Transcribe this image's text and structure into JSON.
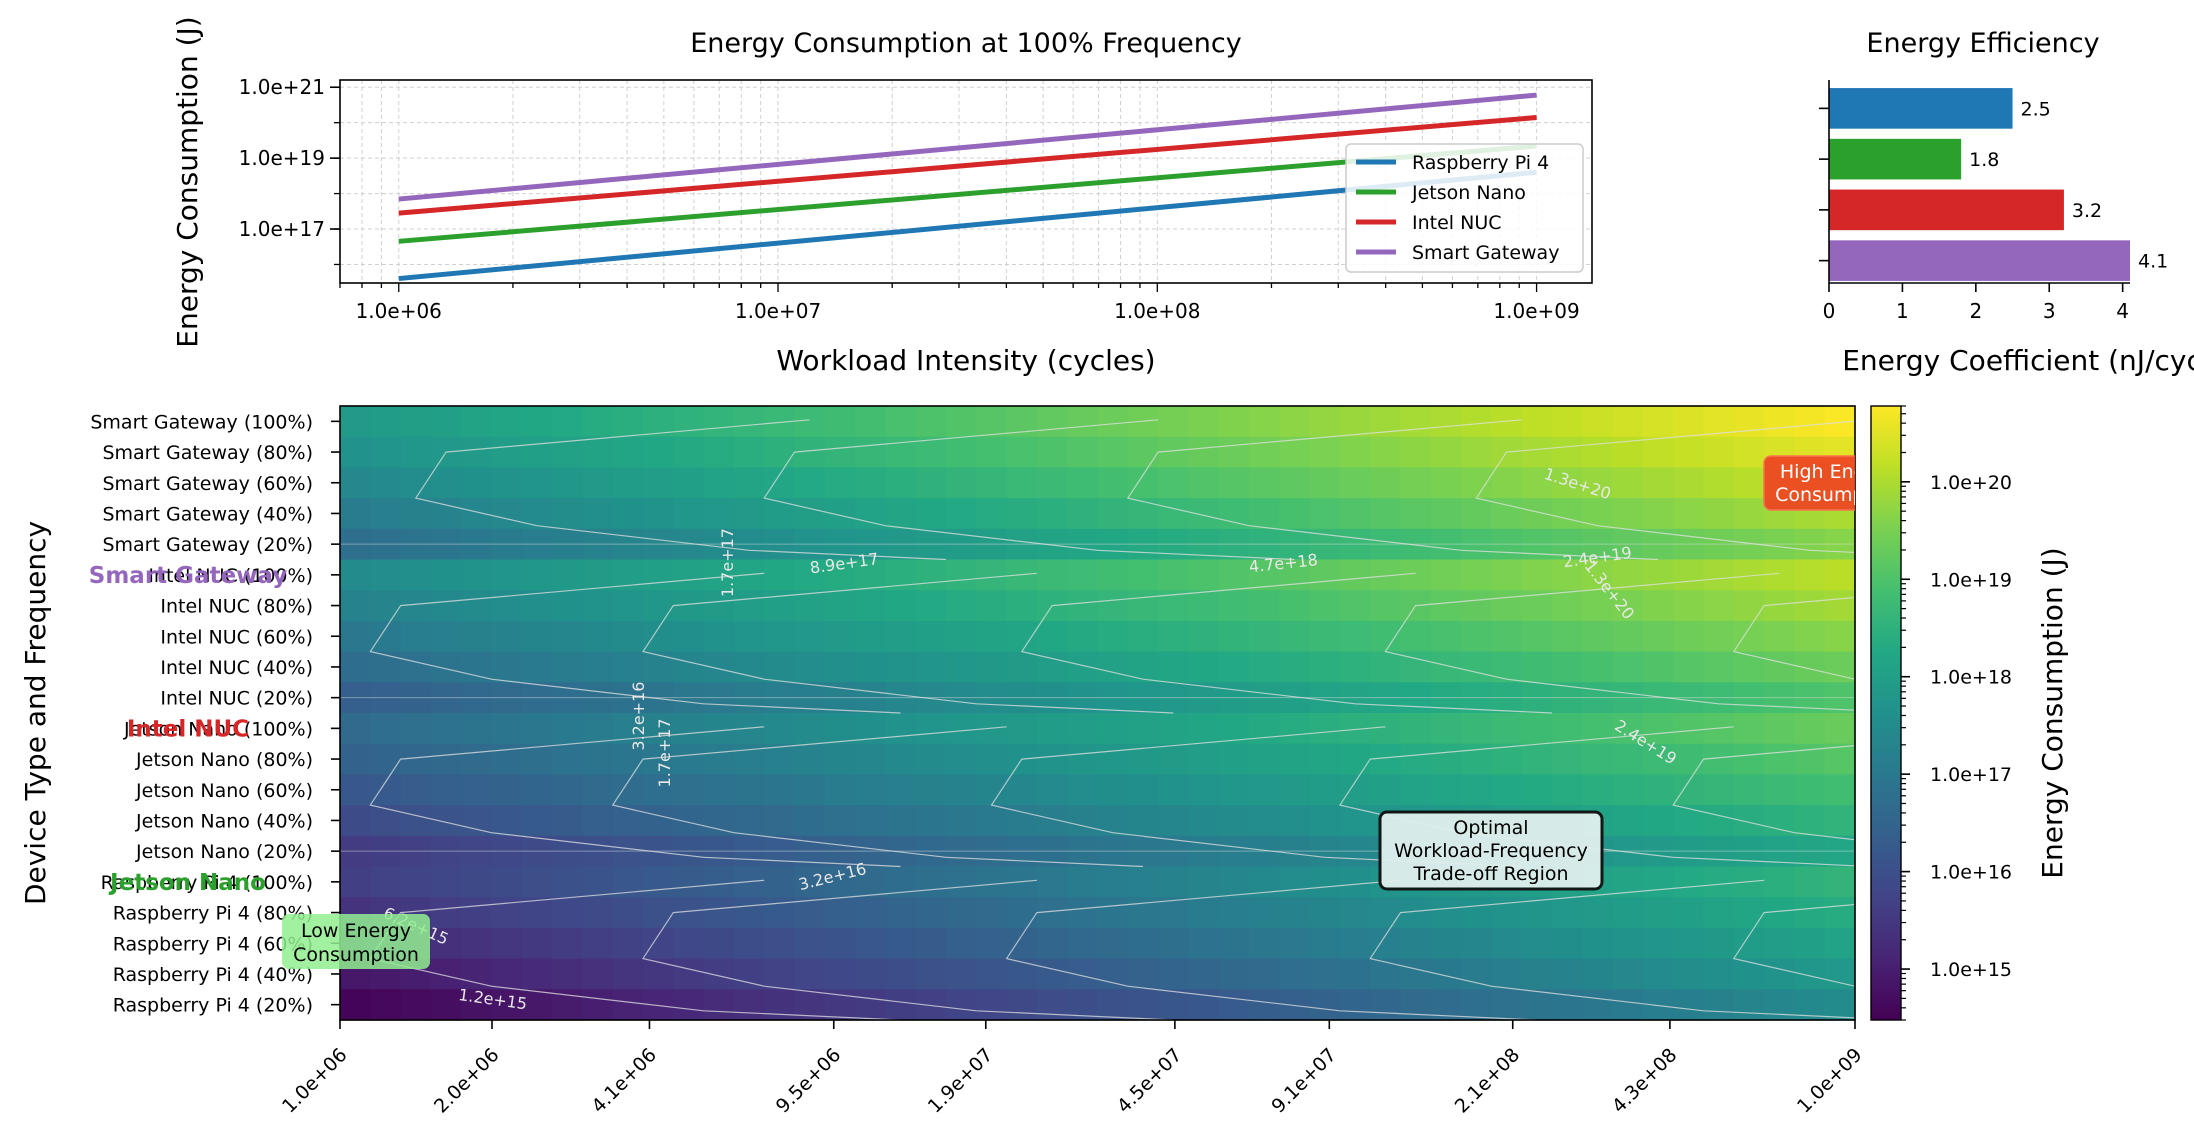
{
  "colors": {
    "raspberry": "#1f77b4",
    "jetson": "#2ca02c",
    "intel": "#d62728",
    "gateway": "#9467bd",
    "grid": "#d0d0d0",
    "axis": "#000000",
    "contour": "#e0e0e0",
    "high_box": "#ee4422",
    "low_box": "#90ee90",
    "optimal_box": "#e0f0ee"
  },
  "chart_data": [
    {
      "type": "line",
      "title": "Energy Consumption at 100% Frequency",
      "xlabel": "Workload Intensity (cycles)",
      "ylabel": "Energy Consumption (J)",
      "xscale": "log",
      "yscale": "log",
      "xlim": [
        700000,
        1400000000
      ],
      "ylim": [
        3000000000000000.0,
        1.6e+21
      ],
      "xticks": [
        {
          "v": 1000000.0,
          "label": "1.0e+06"
        },
        {
          "v": 10000000.0,
          "label": "1.0e+07"
        },
        {
          "v": 100000000.0,
          "label": "1.0e+08"
        },
        {
          "v": 1000000000.0,
          "label": "1.0e+09"
        }
      ],
      "yticks": [
        {
          "v": 1e+17,
          "label": "1.0e+17"
        },
        {
          "v": 1e+19,
          "label": "1.0e+19"
        },
        {
          "v": 1e+21,
          "label": "1.0e+21"
        }
      ],
      "grid": true,
      "legend_position": "right",
      "series": [
        {
          "name": "Raspberry Pi 4",
          "color_key": "raspberry",
          "x": [
            1000000.0,
            1000000000.0
          ],
          "y": [
            4000000000000000.0,
            4e+18
          ]
        },
        {
          "name": "Jetson Nano",
          "color_key": "jetson",
          "x": [
            1000000.0,
            1000000000.0
          ],
          "y": [
            4.5e+16,
            2.2e+19
          ]
        },
        {
          "name": "Intel NUC",
          "color_key": "intel",
          "x": [
            1000000.0,
            1000000000.0
          ],
          "y": [
            2.8e+17,
            1.4e+20
          ]
        },
        {
          "name": "Smart Gateway",
          "color_key": "gateway",
          "x": [
            1000000.0,
            1000000000.0
          ],
          "y": [
            7e+17,
            6e+20
          ]
        }
      ]
    },
    {
      "type": "bar",
      "orientation": "horizontal",
      "title": "Energy Efficiency",
      "xlabel": "Energy Coefficient (nJ/cycle)",
      "xlim": [
        0,
        4.1
      ],
      "xticks": [
        0,
        1,
        2,
        3,
        4
      ],
      "categories": [
        "Raspberry Pi 4",
        "Jetson Nano",
        "Intel NUC",
        "Smart Gateway"
      ],
      "values": [
        2.5,
        1.8,
        3.2,
        4.1
      ],
      "value_labels": [
        "2.5",
        "1.8",
        "3.2",
        "4.1"
      ],
      "color_keys": [
        "raspberry",
        "jetson",
        "intel",
        "gateway"
      ]
    },
    {
      "type": "heatmap",
      "ylabel": "Device Type and Frequency",
      "colorbar_label": "Energy Consumption (J)",
      "color_scale": "log",
      "colormap": "viridis",
      "zlim": [
        300000000000000.0,
        6e+20
      ],
      "colorbar_ticks": [
        {
          "v": 1000000000000000.0,
          "label": "1.0e+15"
        },
        {
          "v": 1e+16,
          "label": "1.0e+16"
        },
        {
          "v": 1e+17,
          "label": "1.0e+17"
        },
        {
          "v": 1e+18,
          "label": "1.0e+18"
        },
        {
          "v": 1e+19,
          "label": "1.0e+19"
        },
        {
          "v": 1e+20,
          "label": "1.0e+20"
        }
      ],
      "x_min": 1000000.0,
      "x_max": 1000000000.0,
      "x_ticks": [
        "1.0e+06",
        "2.0e+06",
        "4.1e+06",
        "9.5e+06",
        "1.9e+07",
        "4.5e+07",
        "9.1e+07",
        "2.1e+08",
        "4.3e+08",
        "1.0e+09"
      ],
      "x_tick_values": [
        1000000.0,
        2000000.0,
        4100000.0,
        9500000.0,
        19000000.0,
        45000000.0,
        91000000.0,
        210000000.0,
        430000000.0,
        1000000000.0
      ],
      "n_cols": 50,
      "rows": [
        "Smart Gateway (100%)",
        "Smart Gateway (80%)",
        "Smart Gateway (60%)",
        "Smart Gateway (40%)",
        "Smart Gateway (20%)",
        "Intel NUC (100%)",
        "Intel NUC (80%)",
        "Intel NUC (60%)",
        "Intel NUC (40%)",
        "Intel NUC (20%)",
        "Jetson Nano (100%)",
        "Jetson Nano (80%)",
        "Jetson Nano (60%)",
        "Jetson Nano (40%)",
        "Jetson Nano (20%)",
        "Raspberry Pi 4 (100%)",
        "Raspberry Pi 4 (80%)",
        "Raspberry Pi 4 (60%)",
        "Raspberry Pi 4 (40%)",
        "Raspberry Pi 4 (20%)"
      ],
      "row_energy_at_min": [
        7e+17,
        4.2e+17,
        2.3e+17,
        1.2e+17,
        5.5e+16,
        2.8e+17,
        1.7e+17,
        9.5e+16,
        5e+16,
        2.2e+16,
        4.5e+16,
        2.7e+16,
        1.5e+16,
        8000000000000000.0,
        3500000000000000.0,
        4000000000000000.0,
        2400000000000000.0,
        1350000000000000.0,
        700000000000000.0,
        320000000000000.0
      ],
      "row_energy_at_max": [
        6e+20,
        3.6e+20,
        2e+20,
        1e+20,
        4.6e+19,
        1.4e+20,
        8.4e+19,
        4.6e+19,
        2.4e+19,
        1.1e+19,
        2.2e+19,
        1.3e+19,
        7.3e+18,
        3.8e+18,
        1.7e+18,
        4e+18,
        2.4e+18,
        1.35e+18,
        7e+17,
        3.2e+17
      ],
      "group_labels": [
        {
          "text": "Smart Gateway",
          "row": 5,
          "color_key": "gateway"
        },
        {
          "text": "Intel NUC",
          "row": 10,
          "color_key": "intel"
        },
        {
          "text": "Jetson Nano",
          "row": 15,
          "color_key": "jetson"
        }
      ],
      "contour_labels": [
        {
          "text": "1.3e+20",
          "x": 280000000.0,
          "row": 2.2,
          "angle": 18
        },
        {
          "text": "2.4e+19",
          "x": 310000000.0,
          "row": 4.6,
          "angle": -8
        },
        {
          "text": "1.3e+20",
          "x": 320000000.0,
          "row": 5.6,
          "angle": 52
        },
        {
          "text": "4.7e+18",
          "x": 74000000.0,
          "row": 4.8,
          "angle": -6
        },
        {
          "text": "8.9e+17",
          "x": 10000000.0,
          "row": 4.8,
          "angle": -8
        },
        {
          "text": "1.7e+17",
          "x": 6000000.0,
          "row": 4.6,
          "angle": -90
        },
        {
          "text": "3.2e+16",
          "x": 4000000.0,
          "row": 9.6,
          "angle": -90
        },
        {
          "text": "1.7e+17",
          "x": 4500000.0,
          "row": 10.8,
          "angle": -90
        },
        {
          "text": "2.4e+19",
          "x": 380000000.0,
          "row": 10.6,
          "angle": 32
        },
        {
          "text": "3.2e+16",
          "x": 9500000.0,
          "row": 15.0,
          "angle": -14
        },
        {
          "text": "6.2e+15",
          "x": 1400000.0,
          "row": 16.6,
          "angle": 24
        },
        {
          "text": "1.2e+15",
          "x": 2000000.0,
          "row": 19.0,
          "angle": 8
        }
      ],
      "annotations": {
        "high": {
          "line1": "High Energy",
          "line2": "Consumption"
        },
        "low": {
          "line1": "Low Energy",
          "line2": "Consumption"
        },
        "optimal": {
          "line1": "Optimal",
          "line2": "Workload-Frequency",
          "line3": "Trade-off Region"
        }
      }
    }
  ]
}
